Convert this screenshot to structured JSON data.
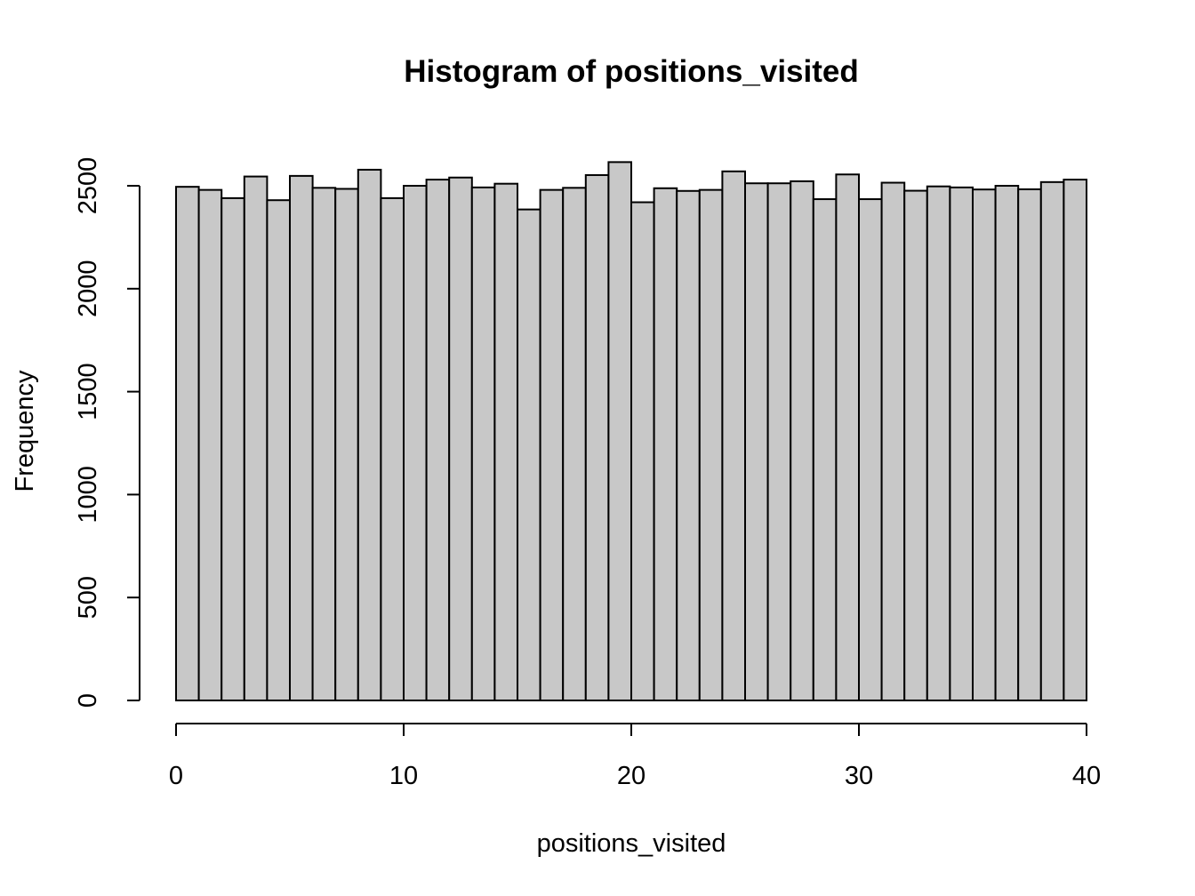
{
  "chart_data": {
    "type": "bar",
    "title": "Histogram of positions_visited",
    "xlabel": "positions_visited",
    "ylabel": "Frequency",
    "xlim": [
      0,
      40
    ],
    "ylim": [
      0,
      2600
    ],
    "x_ticks": [
      0,
      10,
      20,
      30,
      40
    ],
    "y_ticks": [
      0,
      500,
      1000,
      1500,
      2000,
      2500
    ],
    "bin_width": 1,
    "bin_start": 0,
    "values": [
      2495,
      2480,
      2440,
      2545,
      2430,
      2548,
      2490,
      2485,
      2578,
      2440,
      2500,
      2530,
      2540,
      2492,
      2510,
      2385,
      2480,
      2490,
      2552,
      2615,
      2420,
      2488,
      2475,
      2480,
      2570,
      2512,
      2512,
      2522,
      2435,
      2555,
      2435,
      2515,
      2476,
      2497,
      2492,
      2482,
      2500,
      2483,
      2518,
      2530
    ],
    "bar_fill": "#c8c8c8",
    "bar_stroke": "#000000",
    "grid": false,
    "legend": "none"
  }
}
